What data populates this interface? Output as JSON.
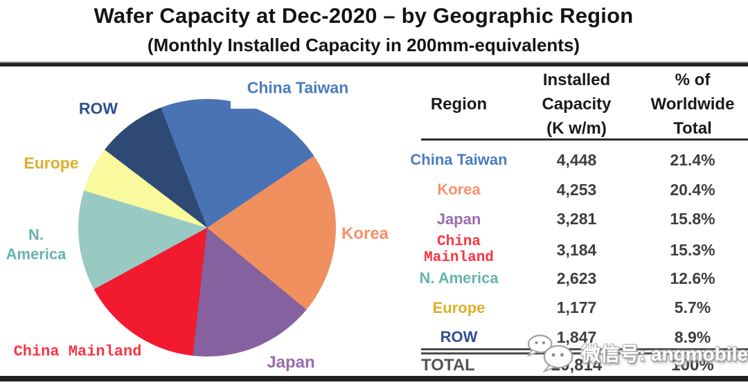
{
  "header": {
    "title": "Wafer Capacity at Dec-2020 – by Geographic Region",
    "subtitle": "(Monthly Installed Capacity in 200mm-equivalents)"
  },
  "chart_data": {
    "type": "pie",
    "title": "Wafer Capacity at Dec-2020 – by Geographic Region",
    "subtitle": "(Monthly Installed Capacity in 200mm-equivalents)",
    "unit": "K w/m",
    "start_angle_deg": -21,
    "direction": "clockwise",
    "legend_position": "labels-around-pie",
    "slices": [
      {
        "label": "China Taiwan",
        "value": 4448,
        "pct": 21.4,
        "color": "#4a73b5",
        "label_color": "#4a7cc0"
      },
      {
        "label": "Korea",
        "value": 4253,
        "pct": 20.4,
        "color": "#f0905f",
        "label_color": "#f8906a"
      },
      {
        "label": "Japan",
        "value": 3281,
        "pct": 15.8,
        "color": "#86619f",
        "label_color": "#9b6bad"
      },
      {
        "label": "China Mainland",
        "value": 3184,
        "pct": 15.3,
        "color": "#f21a2e",
        "label_color": "#fb3340"
      },
      {
        "label": "N. America",
        "value": 2623,
        "pct": 12.6,
        "color": "#98cac3",
        "label_color": "#67b3ae",
        "label_lines": [
          "N.",
          "America"
        ]
      },
      {
        "label": "Europe",
        "value": 1177,
        "pct": 5.7,
        "color": "#f8fa9d",
        "label_color": "#dcb02a"
      },
      {
        "label": "ROW",
        "value": 1847,
        "pct": 8.9,
        "color": "#2e4a74",
        "label_color": "#2e4f94"
      }
    ],
    "total": {
      "label": "TOTAL",
      "value": 20814,
      "pct": 100
    }
  },
  "table": {
    "headers": {
      "region": "Region",
      "capacity": [
        "Installed",
        "Capacity",
        "(K w/m)"
      ],
      "pct": [
        "% of",
        "Worldwide",
        "Total"
      ]
    },
    "rows": [
      {
        "region": "China Taiwan",
        "capacity": "4,448",
        "pct": "21.4%",
        "color": "#4a7cc0"
      },
      {
        "region": "Korea",
        "capacity": "4,253",
        "pct": "20.4%",
        "color": "#f8906a"
      },
      {
        "region": "Japan",
        "capacity": "3,281",
        "pct": "15.8%",
        "color": "#9b6bad"
      },
      {
        "region": "China Mainland",
        "capacity": "3,184",
        "pct": "15.3%",
        "color": "#fb3340"
      },
      {
        "region": "N. America",
        "capacity": "2,623",
        "pct": "12.6%",
        "color": "#67b3ae"
      },
      {
        "region": "Europe",
        "capacity": "1,177",
        "pct": "5.7%",
        "color": "#dcb02a"
      },
      {
        "region": "ROW",
        "capacity": "1,847",
        "pct": "8.9%",
        "color": "#2e4f94"
      }
    ],
    "total": {
      "label": "TOTAL",
      "capacity": "20,814",
      "pct": "100%"
    }
  },
  "watermark": {
    "icon": "wechat-icon",
    "text": "微信号: angmobile"
  }
}
